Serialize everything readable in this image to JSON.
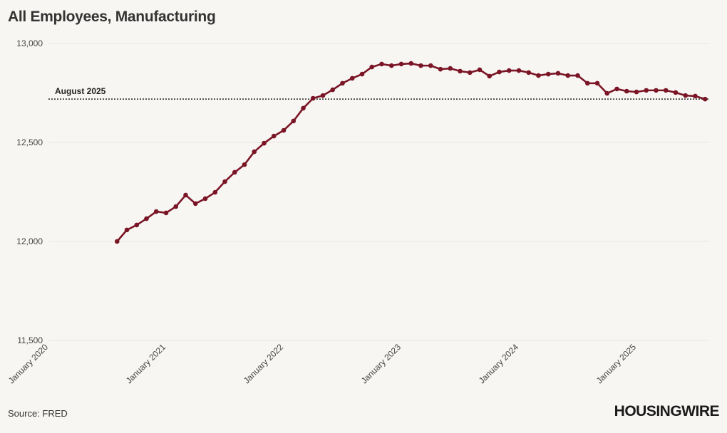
{
  "title": "All Employees, Manufacturing",
  "source": "Source: FRED",
  "logo": "HOUSINGWIRE",
  "colors": {
    "background": "#f8f6f3",
    "line": "#7a1526",
    "grid": "#e9e6e2",
    "reference": "#222222"
  },
  "chart_data": {
    "type": "line",
    "title": "All Employees, Manufacturing",
    "xlabel": "",
    "ylabel": "",
    "ylim": [
      11500,
      13000
    ],
    "yticks": [
      11500,
      12000,
      12500,
      13000
    ],
    "ytick_labels": [
      "11,500",
      "12,000",
      "12,500",
      "13,000"
    ],
    "xlim": [
      "2020-01",
      "2025-08"
    ],
    "xticks": [
      "2020-01",
      "2021-01",
      "2022-01",
      "2023-01",
      "2024-01",
      "2025-01"
    ],
    "xtick_labels": [
      "January 2020",
      "January 2021",
      "January 2022",
      "January 2023",
      "January 2024",
      "January 2025"
    ],
    "grid": "horizontal",
    "markers": true,
    "annotation": {
      "label": "August 2025",
      "value": 12719,
      "style": "dotted horizontal line"
    },
    "x": [
      "2020-08",
      "2020-09",
      "2020-10",
      "2020-11",
      "2020-12",
      "2021-01",
      "2021-02",
      "2021-03",
      "2021-04",
      "2021-05",
      "2021-06",
      "2021-07",
      "2021-08",
      "2021-09",
      "2021-10",
      "2021-11",
      "2021-12",
      "2022-01",
      "2022-02",
      "2022-03",
      "2022-04",
      "2022-05",
      "2022-06",
      "2022-07",
      "2022-08",
      "2022-09",
      "2022-10",
      "2022-11",
      "2022-12",
      "2023-01",
      "2023-02",
      "2023-03",
      "2023-04",
      "2023-05",
      "2023-06",
      "2023-07",
      "2023-08",
      "2023-09",
      "2023-10",
      "2023-11",
      "2023-12",
      "2024-01",
      "2024-02",
      "2024-03",
      "2024-04",
      "2024-05",
      "2024-06",
      "2024-07",
      "2024-08",
      "2024-09",
      "2024-10",
      "2024-11",
      "2024-12",
      "2025-01",
      "2025-02",
      "2025-03",
      "2025-04",
      "2025-05",
      "2025-06",
      "2025-07",
      "2025-08"
    ],
    "values": [
      12000,
      12058,
      12083,
      12115,
      12151,
      12144,
      12176,
      12234,
      12191,
      12216,
      12248,
      12302,
      12349,
      12388,
      12453,
      12496,
      12532,
      12561,
      12608,
      12673,
      12723,
      12737,
      12766,
      12799,
      12824,
      12845,
      12881,
      12896,
      12888,
      12896,
      12899,
      12888,
      12888,
      12870,
      12874,
      12860,
      12853,
      12867,
      12835,
      12856,
      12863,
      12863,
      12853,
      12838,
      12845,
      12849,
      12838,
      12838,
      12799,
      12799,
      12748,
      12770,
      12759,
      12755,
      12763,
      12763,
      12763,
      12752,
      12737,
      12734,
      12719
    ]
  }
}
